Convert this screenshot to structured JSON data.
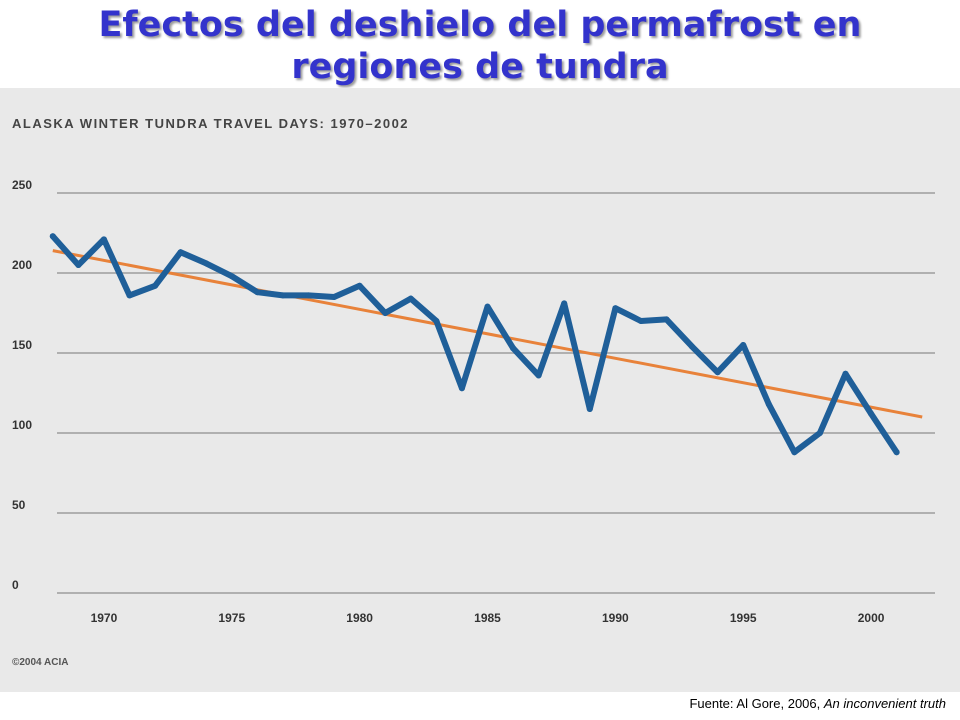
{
  "slide": {
    "title_line1": "Efectos del deshielo del permafrost en",
    "title_line2": "regiones de tundra"
  },
  "source": {
    "prefix": "Fuente: Al Gore, 2006, ",
    "work": "An inconvenient truth"
  },
  "colors": {
    "title": "#3333cc",
    "series": "#1f5f99",
    "trend": "#e8823a",
    "grid": "#b0b0b0",
    "panel": "#e9e9e9",
    "text": "#333333"
  },
  "chart_data": {
    "type": "line",
    "title": "ALASKA WINTER TUNDRA TRAVEL DAYS: 1970–2002",
    "credit": "©2004 ACIA",
    "xlabel": "",
    "ylabel": "",
    "xlim": [
      1967.5,
      2002.5
    ],
    "ylim": [
      0,
      250
    ],
    "x_ticks": [
      1970,
      1975,
      1980,
      1985,
      1990,
      1995,
      2000
    ],
    "y_ticks": [
      0,
      50,
      100,
      150,
      200,
      250
    ],
    "grid": true,
    "series": [
      {
        "values": [
          [
            1968,
            223
          ],
          [
            1969,
            205
          ],
          [
            1970,
            221
          ],
          [
            1971,
            186
          ],
          [
            1972,
            192
          ],
          [
            1973,
            213
          ],
          [
            1974,
            206
          ],
          [
            1975,
            198
          ],
          [
            1976,
            188
          ],
          [
            1977,
            186
          ],
          [
            1978,
            186
          ],
          [
            1979,
            185
          ],
          [
            1980,
            192
          ],
          [
            1981,
            175
          ],
          [
            1982,
            184
          ],
          [
            1983,
            170
          ],
          [
            1984,
            128
          ],
          [
            1985,
            179
          ],
          [
            1986,
            153
          ],
          [
            1987,
            136
          ],
          [
            1988,
            181
          ],
          [
            1989,
            115
          ],
          [
            1990,
            178
          ],
          [
            1991,
            170
          ],
          [
            1992,
            171
          ],
          [
            1993,
            154
          ],
          [
            1994,
            138
          ],
          [
            1995,
            155
          ],
          [
            1996,
            118
          ],
          [
            1997,
            88
          ],
          [
            1998,
            100
          ],
          [
            1999,
            137
          ],
          [
            2000,
            112
          ],
          [
            2001,
            88
          ]
        ]
      }
    ],
    "trend": [
      [
        1968,
        214
      ],
      [
        2002,
        110
      ]
    ]
  }
}
